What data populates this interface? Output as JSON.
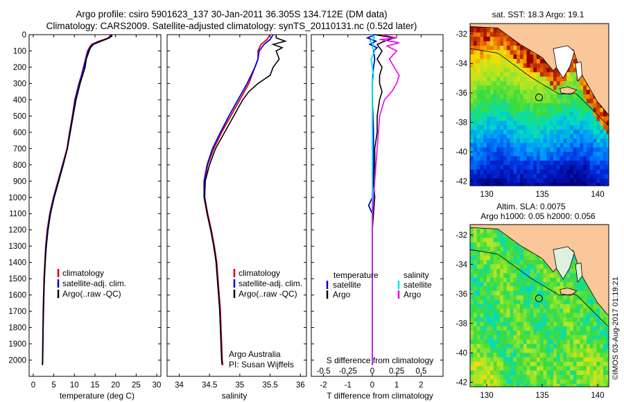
{
  "header": {
    "title_line1": "Argo profile: csiro 5901623_137 30-Jan-2011 36.305S 134.712E (DM data)",
    "title_line2": "Climatology: CARS2009. Satellite-adjusted climatology: synTS_20110131.nc (0.52d later)"
  },
  "colors": {
    "climatology": "#dd0000",
    "satellite_adj": "#0000ee",
    "argo": "#000000",
    "diff_temperature_satellite": "#0000cc",
    "diff_salinity_satellite": "#00e5ee",
    "diff_salinity_argo": "#ee00ee",
    "land": "#f9c79a"
  },
  "chart_data": [
    {
      "type": "line",
      "xlabel": "temperature (deg C)",
      "ylabel": "",
      "xlim": [
        -1,
        31
      ],
      "ylim": [
        2100,
        0
      ],
      "xticks": [
        0,
        5,
        10,
        15,
        20,
        25,
        30
      ],
      "yticks": [
        0,
        100,
        200,
        300,
        400,
        500,
        600,
        700,
        800,
        900,
        1000,
        1100,
        1200,
        1300,
        1400,
        1500,
        1600,
        1700,
        1800,
        1900,
        2000
      ],
      "legend": [
        "climatology",
        "satellite-adj. clim.",
        "Argo(..raw -QC)"
      ],
      "series": [
        {
          "name": "climatology",
          "depth": [
            0,
            20,
            40,
            60,
            80,
            100,
            150,
            200,
            250,
            300,
            400,
            500,
            600,
            700,
            800,
            900,
            1000,
            1100,
            1200,
            1300,
            1400,
            1500,
            1600,
            1700,
            1800,
            1900,
            2000,
            2030
          ],
          "values": [
            18.8,
            18.3,
            16.0,
            14.2,
            13.6,
            13.2,
            12.7,
            12.2,
            11.7,
            11.1,
            10.1,
            9.5,
            8.8,
            8.2,
            7.1,
            6.0,
            4.9,
            4.0,
            3.4,
            3.0,
            2.8,
            2.6,
            2.5,
            2.4,
            2.35,
            2.3,
            2.25,
            2.2
          ]
        },
        {
          "name": "satellite-adj. clim.",
          "depth": [
            0,
            20,
            40,
            60,
            80,
            100,
            150,
            200,
            250,
            300,
            400,
            500,
            600,
            700,
            800,
            900,
            1000,
            1100,
            1200,
            1300,
            1400,
            1500,
            1600,
            1700,
            1800,
            1900,
            2000,
            2030
          ],
          "values": [
            19.0,
            18.5,
            16.5,
            14.6,
            13.9,
            13.3,
            12.8,
            12.3,
            11.8,
            11.2,
            10.2,
            9.6,
            8.9,
            8.3,
            7.2,
            6.1,
            5.0,
            4.1,
            3.5,
            3.1,
            2.9,
            2.7,
            2.55,
            2.45,
            2.4,
            2.35,
            2.3,
            2.25
          ]
        },
        {
          "name": "Argo(..raw -QC)",
          "depth": [
            0,
            10,
            20,
            30,
            40,
            50,
            60,
            70,
            80,
            100,
            150,
            200,
            250,
            300,
            400,
            500,
            600,
            700,
            800,
            900,
            1000,
            1100,
            1200,
            1300,
            1400,
            1500,
            1600,
            1700,
            1800,
            1900,
            2000,
            2030
          ],
          "values": [
            19.0,
            19.1,
            18.2,
            17.5,
            16.4,
            15.2,
            14.4,
            14.0,
            13.9,
            13.6,
            12.9,
            12.6,
            12.0,
            11.4,
            10.4,
            9.7,
            9.0,
            8.3,
            7.3,
            6.2,
            5.1,
            4.2,
            3.6,
            3.2,
            2.9,
            2.7,
            2.6,
            2.5,
            2.4,
            2.35,
            2.3,
            2.25
          ]
        }
      ]
    },
    {
      "type": "line",
      "xlabel": "salinity",
      "ylabel": "",
      "xlim": [
        33.8,
        36.1
      ],
      "ylim": [
        2100,
        0
      ],
      "xticks": [
        34,
        34.5,
        35,
        35.5,
        36
      ],
      "legend": [
        "climatology",
        "satellite-adj. clim.",
        "Argo(..raw -QC)"
      ],
      "annotation": [
        "Argo Australia",
        "PI: Susan Wijffels"
      ],
      "series": [
        {
          "name": "climatology",
          "depth": [
            0,
            30,
            60,
            100,
            150,
            200,
            300,
            400,
            500,
            600,
            700,
            800,
            900,
            1000,
            1100,
            1200,
            1300,
            1400,
            1500,
            1600,
            1700,
            1800,
            1900,
            2000,
            2030
          ],
          "values": [
            35.5,
            35.45,
            35.35,
            35.3,
            35.3,
            35.25,
            35.15,
            35.0,
            34.85,
            34.7,
            34.57,
            34.47,
            34.42,
            34.42,
            34.47,
            34.53,
            34.58,
            34.62,
            34.64,
            34.66,
            34.68,
            34.69,
            34.7,
            34.71,
            34.72
          ]
        },
        {
          "name": "satellite-adj. clim.",
          "depth": [
            0,
            30,
            60,
            100,
            150,
            200,
            300,
            400,
            500,
            600,
            700,
            800,
            900,
            1000,
            1100,
            1200,
            1300,
            1400,
            1500,
            1600,
            1700,
            1800,
            1900,
            2000,
            2030
          ],
          "values": [
            35.55,
            35.5,
            35.4,
            35.32,
            35.3,
            35.25,
            35.12,
            34.97,
            34.82,
            34.68,
            34.55,
            34.46,
            34.41,
            34.41,
            34.46,
            34.52,
            34.57,
            34.61,
            34.63,
            34.65,
            34.67,
            34.68,
            34.69,
            34.7,
            34.71
          ]
        },
        {
          "name": "Argo(..raw -QC)",
          "depth": [
            0,
            20,
            40,
            60,
            80,
            100,
            150,
            200,
            250,
            300,
            350,
            400,
            500,
            600,
            700,
            800,
            900,
            1000,
            1100,
            1200,
            1300,
            1400,
            1500,
            1600,
            1700,
            1800,
            1900,
            2000,
            2030
          ],
          "values": [
            35.6,
            35.6,
            35.75,
            35.55,
            35.7,
            35.6,
            35.65,
            35.55,
            35.5,
            35.3,
            35.15,
            35.05,
            34.9,
            34.75,
            34.6,
            34.5,
            34.43,
            34.42,
            34.46,
            34.52,
            34.57,
            34.61,
            34.63,
            34.65,
            34.67,
            34.68,
            34.69,
            34.7,
            34.71
          ]
        }
      ]
    },
    {
      "type": "line",
      "xlabel": "T difference from climatology",
      "x2label": "S difference from climatology",
      "ylabel": "",
      "xlim": [
        -2.5,
        2.9
      ],
      "ylim": [
        2100,
        0
      ],
      "xticks": [
        -2,
        -1,
        0,
        1,
        2
      ],
      "x2ticks": [
        "-0.5",
        "-0.25",
        "0",
        "0.25",
        "0.5"
      ],
      "x2tick_positions": [
        -2,
        -1,
        0,
        1,
        2
      ],
      "legend_temperature": [
        "temperature",
        "satellite",
        "Argo"
      ],
      "legend_salinity": [
        "salinity",
        "satellite",
        "Argo"
      ],
      "series": [
        {
          "name": "temperature satellite",
          "depth": [
            0,
            20,
            40,
            60,
            80,
            100,
            150,
            200,
            300,
            400,
            600,
            800,
            1000,
            1050,
            1100,
            1200,
            1500,
            2030
          ],
          "values": [
            0.1,
            -0.2,
            0.15,
            -0.1,
            0.2,
            0.05,
            0.1,
            0.05,
            0.0,
            0.0,
            0.05,
            0.05,
            0.0,
            -0.15,
            0.0,
            0.0,
            0.0,
            0.0
          ]
        },
        {
          "name": "temperature Argo",
          "depth": [
            0,
            20,
            40,
            60,
            80,
            100,
            150,
            200,
            250,
            300,
            350,
            400,
            500,
            600,
            700,
            800,
            900,
            1000,
            1100,
            1200,
            1300,
            1500,
            1700,
            2030
          ],
          "values": [
            0.1,
            0.9,
            0.5,
            0.2,
            0.3,
            0.4,
            0.2,
            0.4,
            0.3,
            0.3,
            0.4,
            0.3,
            0.2,
            0.2,
            0.1,
            0.1,
            0.05,
            0.1,
            0.05,
            0.0,
            0.0,
            0.0,
            0.0,
            0.0
          ]
        },
        {
          "name": "salinity satellite",
          "depth": [
            0,
            20,
            40,
            60,
            80,
            100,
            150,
            200,
            250,
            300,
            400,
            600,
            800,
            1000,
            1200,
            1500,
            2030
          ],
          "values": [
            -0.05,
            0.1,
            -0.1,
            0.05,
            0.0,
            0.1,
            -0.05,
            0.0,
            0.05,
            0.0,
            0.0,
            0.0,
            0.0,
            0.0,
            0.0,
            0.0,
            0.0
          ]
        },
        {
          "name": "salinity Argo",
          "depth": [
            0,
            20,
            30,
            50,
            70,
            100,
            150,
            200,
            250,
            300,
            350,
            400,
            450,
            500,
            600,
            700,
            800,
            900,
            1000,
            1100,
            1200,
            1500,
            2030
          ],
          "values": [
            0.4,
            1.0,
            0.3,
            1.1,
            0.6,
            1.0,
            0.7,
            0.9,
            1.1,
            1.0,
            0.8,
            0.5,
            0.4,
            0.3,
            0.25,
            0.2,
            0.15,
            0.1,
            0.05,
            0.0,
            0.0,
            0.0,
            0.0
          ]
        }
      ]
    },
    {
      "type": "heatmap",
      "title": "sat. SST: 18.3 Argo: 19.1",
      "xlim": [
        128.5,
        141
      ],
      "ylim": [
        -42.3,
        -31.3
      ],
      "xticks": [
        130,
        135,
        140
      ],
      "yticks": [
        -42,
        -40,
        -38,
        -36,
        -34,
        -32
      ],
      "profile_location": [
        134.712,
        -36.305
      ]
    },
    {
      "type": "heatmap",
      "title_line1": "Altim. SLA: 0.0075",
      "title_line2": "Argo h1000: 0.05 h2000: 0.056",
      "xlim": [
        128.5,
        141
      ],
      "ylim": [
        -42.3,
        -31.3
      ],
      "xticks": [
        130,
        135,
        140
      ],
      "yticks": [
        -42,
        -40,
        -38,
        -36,
        -34,
        -32
      ],
      "profile_location": [
        134.712,
        -36.305
      ]
    }
  ],
  "footer": {
    "credit": "©IMOS 03-Aug-2017 01:19:21"
  }
}
